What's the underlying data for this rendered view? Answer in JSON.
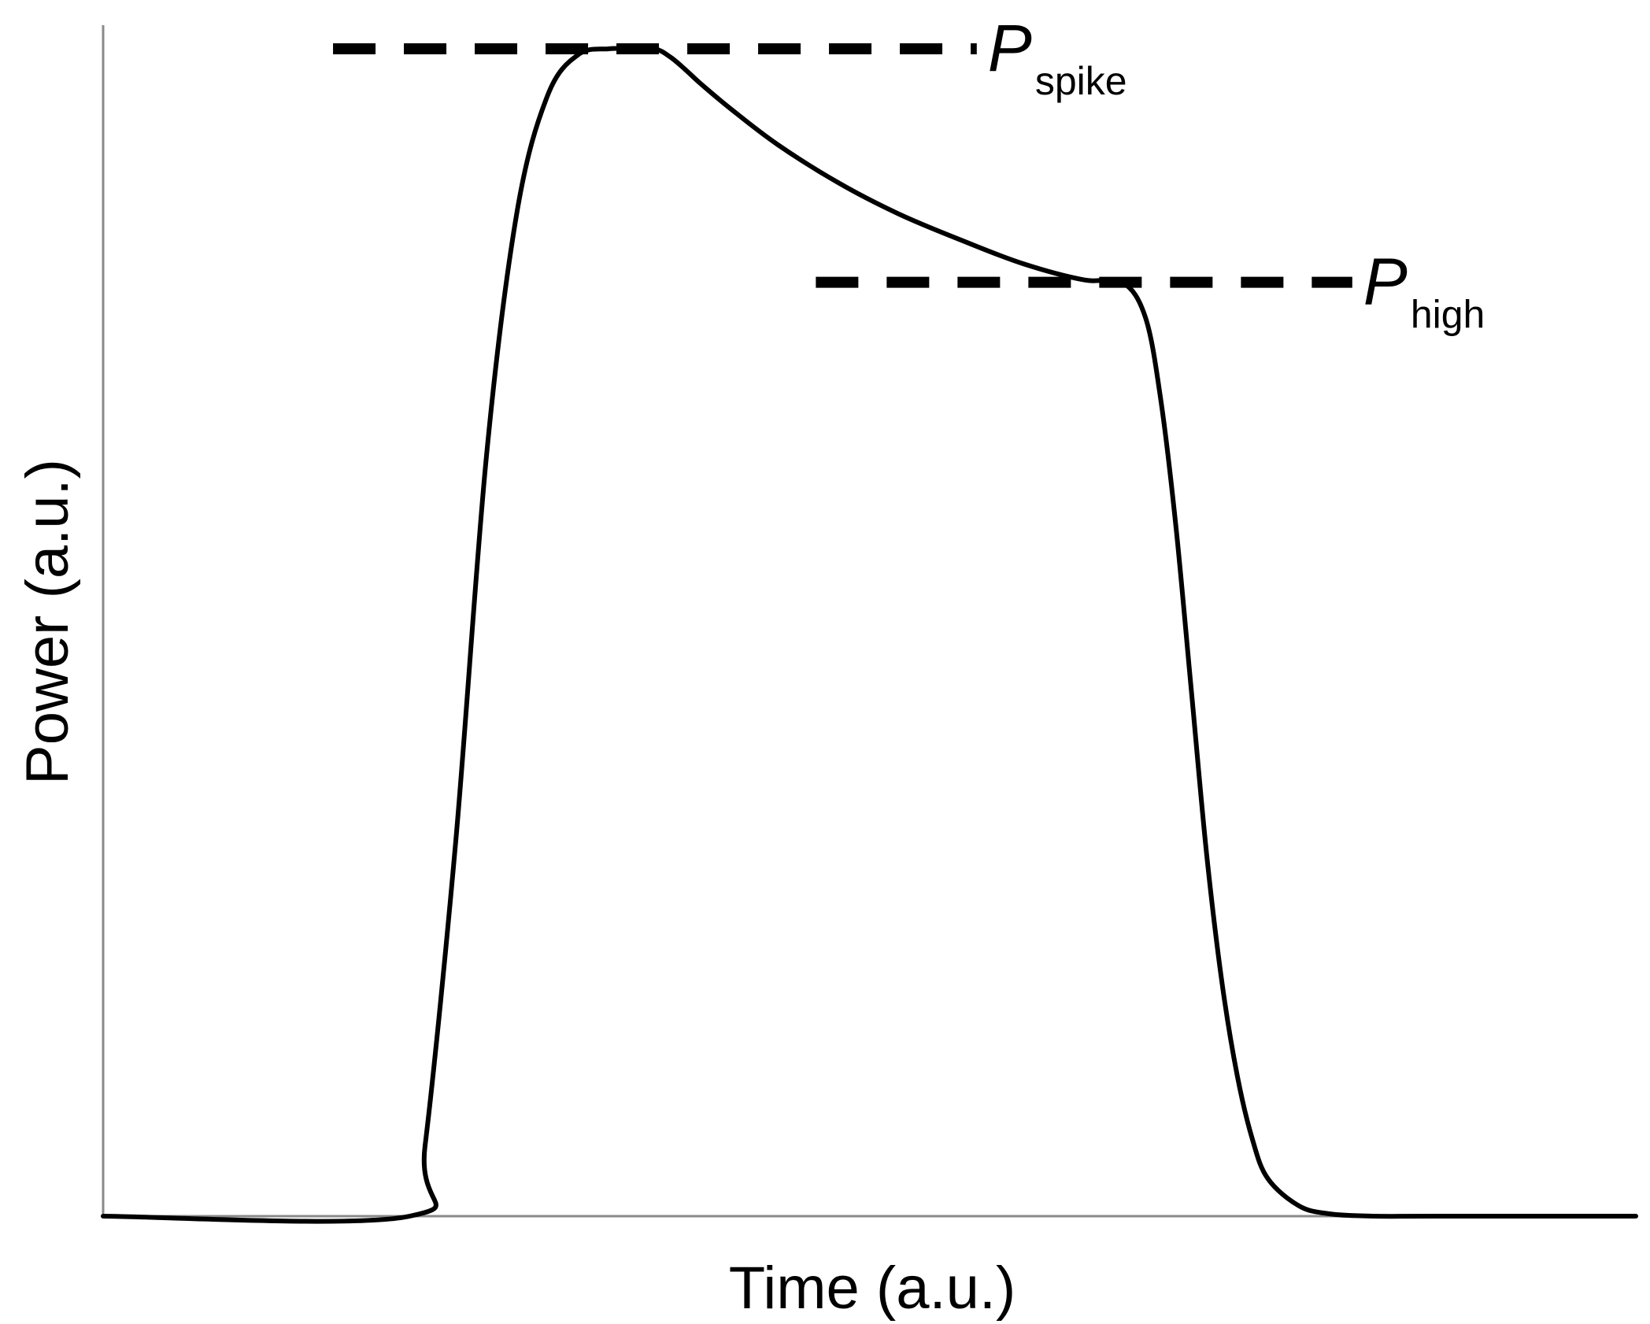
{
  "chart_data": {
    "type": "line",
    "title": "",
    "xlabel": "Time (a.u.)",
    "ylabel": "Power (a.u.)",
    "xlim": [
      0,
      1
    ],
    "ylim": [
      0,
      1
    ],
    "grid": false,
    "legend": "none",
    "series": [
      {
        "x": [
          0.0,
          0.2,
          0.21,
          0.23,
          0.25,
          0.27,
          0.29,
          0.31,
          0.33,
          0.345,
          0.36,
          0.37,
          0.38,
          0.39,
          0.41,
          0.44,
          0.48,
          0.52,
          0.56,
          0.6,
          0.64,
          0.665,
          0.68,
          0.69,
          0.7,
          0.71,
          0.72,
          0.73,
          0.74,
          0.75,
          0.76,
          0.78,
          0.8,
          0.83,
          0.87,
          1.0
        ],
        "y": [
          0.0,
          0.0,
          0.06,
          0.32,
          0.65,
          0.86,
          0.96,
          0.995,
          1.0,
          1.0,
          1.0,
          0.993,
          0.982,
          0.97,
          0.948,
          0.918,
          0.885,
          0.858,
          0.836,
          0.816,
          0.802,
          0.8,
          0.77,
          0.7,
          0.59,
          0.45,
          0.31,
          0.2,
          0.12,
          0.065,
          0.032,
          0.009,
          0.002,
          0.0,
          0.0,
          0.0
        ]
      }
    ],
    "reference_lines": [
      {
        "label_main": "P",
        "label_sub": "spike",
        "y": 1.0,
        "x_start": 0.15,
        "x_end": 0.57
      },
      {
        "label_main": "P",
        "label_sub": "high",
        "y": 0.8,
        "x_start": 0.465,
        "x_end": 0.815
      }
    ],
    "colors": {
      "line": "#000000",
      "axis": "#8a8a8a"
    }
  }
}
